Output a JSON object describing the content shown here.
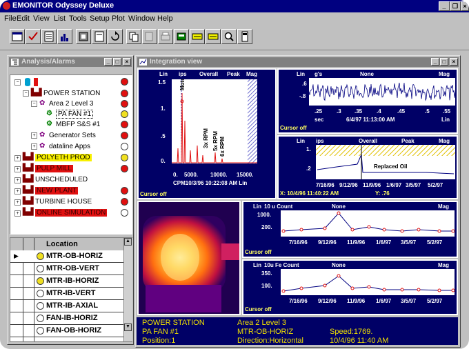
{
  "app": {
    "title": "EMONITOR Odyssey Deluxe"
  },
  "menu": [
    "File",
    "Edit",
    "View",
    "List",
    "Tools",
    "Setup",
    "Plot",
    "Window",
    "Help"
  ],
  "toolbar": {
    "notes_label": "NOTES",
    "alarm_label": "ALRM"
  },
  "analysis_window": {
    "title": "Analysis/Alarms"
  },
  "tree": [
    {
      "label": "POWER STATION",
      "status": "red"
    },
    {
      "label": "Area 2 Level 3",
      "status": "red"
    },
    {
      "label": "PA FAN #1",
      "status": "yellow"
    },
    {
      "label": "MBFP S&S #1",
      "status": "red"
    },
    {
      "label": "Generator Sets",
      "status": "red"
    },
    {
      "label": "dataline Apps",
      "status": "white"
    },
    {
      "label": "POLYETH PROD",
      "status": "yellow"
    },
    {
      "label": "PULP MILL",
      "status": "red"
    },
    {
      "label": "UNSCHEDULED",
      "status": "none"
    },
    {
      "label": "NEW PLANT",
      "status": "red"
    },
    {
      "label": "TURBINE HOUSE",
      "status": "red"
    },
    {
      "label": "ONLINE SIMULATION",
      "status": "white"
    }
  ],
  "locations": {
    "header": "Location",
    "rows": [
      "MTR-OB-HORIZ",
      "MTR-OB-VERT",
      "MTR-IB-HORIZ",
      "MTR-IB-VERT",
      "MTR-IB-AXIAL",
      "FAN-IB-HORIZ",
      "FAN-OB-HORIZ"
    ]
  },
  "integration_window": {
    "title": "Integration view"
  },
  "spectrum": {
    "h_lin": "Lin",
    "h_ips": "ips",
    "h_overall": "Overall",
    "h_peak": "Peak",
    "h_mag": "Mag",
    "y_ticks": [
      "1.5",
      "1.",
      ".5",
      "0."
    ],
    "x_ticks": [
      "0.",
      "5000.",
      "10000.",
      "15000."
    ],
    "footer": "CPM10/3/96 10:22:08 AM  Lin",
    "cursor": "Cursor off",
    "annotations": [
      "Motor",
      "3x RPM",
      "5x RPM",
      "6x RPM"
    ]
  },
  "waveform": {
    "h_lin": "Lin",
    "h_units": "g's",
    "h_none": "None",
    "h_mag": "Mag",
    "y_ticks": [
      ".6",
      "-.8"
    ],
    "x_ticks": [
      ".25",
      ".3",
      ".35",
      ".4",
      ".45",
      ".5",
      ".55"
    ],
    "x_unit": "sec",
    "timestamp": "6/4/97 11:13:00 AM",
    "scale": "Lin",
    "cursor": "Cursor off"
  },
  "trend": {
    "h_lin": "Lin",
    "h_ips": "ips",
    "h_overall": "Overall",
    "h_peak": "Peak",
    "h_mag": "Mag",
    "y_ticks": [
      "1.",
      ".2"
    ],
    "annotation": "Replaced Oil",
    "x_ticks": [
      "7/16/96",
      "9/12/96",
      "11/9/96",
      "1/6/97",
      "3/5/97",
      "5/2/97"
    ],
    "cursor_x": "X: 10/4/96 11:40:22 AM",
    "cursor_y": "Y: .76"
  },
  "count10": {
    "h_lin": "Lin",
    "h_label": "10 u Count",
    "h_none": "None",
    "h_mag": "Mag",
    "y_ticks": [
      "1000.",
      "200."
    ],
    "x_ticks": [
      "7/16/96",
      "9/12/96",
      "11/9/96",
      "1/6/97",
      "3/5/97",
      "5/2/97"
    ],
    "cursor": "Cursor off"
  },
  "fecount": {
    "h_lin": "Lin",
    "h_label": "10u Fe Count",
    "h_none": "None",
    "h_mag": "Mag",
    "y_ticks": [
      "350.",
      "100."
    ],
    "x_ticks": [
      "7/16/96",
      "9/12/96",
      "11/9/96",
      "1/6/97",
      "3/5/97",
      "5/2/97"
    ],
    "cursor": "Cursor off"
  },
  "info": {
    "plant": "POWER STATION",
    "area": "Area 2 Level 3",
    "machine": "PA FAN #1",
    "location": "MTR-OB-HORIZ",
    "speed": "Speed:1769.",
    "position": "Position:1",
    "direction": "Direction:Horizontal",
    "datetime": "10/4/96 11:40 AM"
  },
  "colors": {
    "titlebar": "#000080",
    "plot_bg": "#000066",
    "alarm_red": "#e01010",
    "alert_yellow": "#f0e020"
  }
}
